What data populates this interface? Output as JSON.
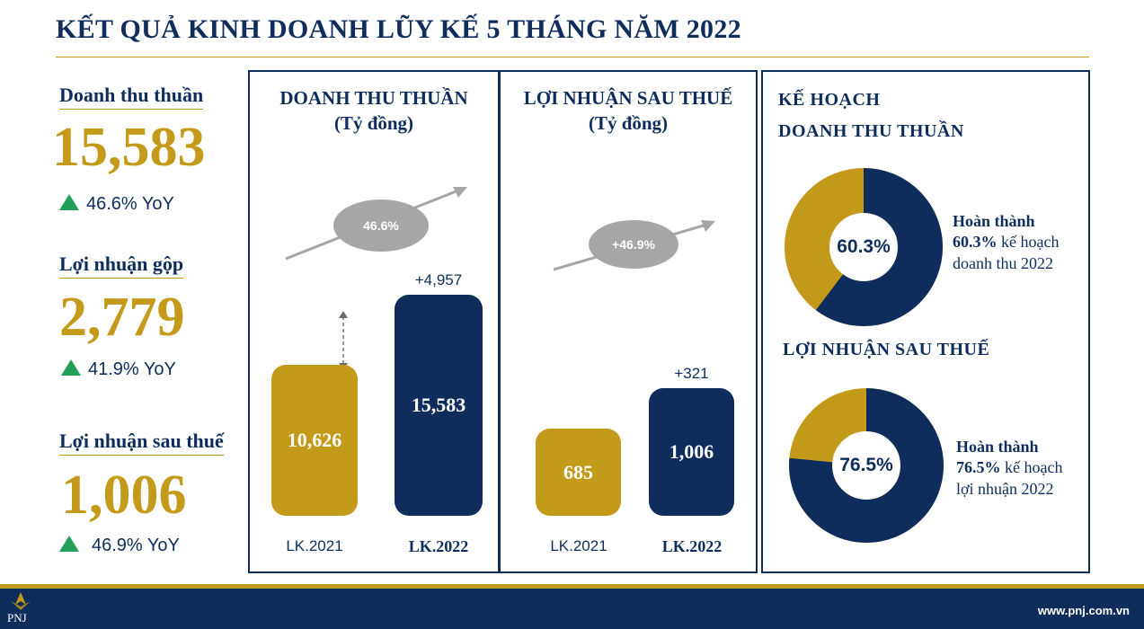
{
  "title": "KẾT QUẢ KINH DOANH LŨY KẾ 5 THÁNG NĂM 2022",
  "kpis": [
    {
      "label": "Doanh thu thuần",
      "value": "15,583",
      "yoy": "46.6% YoY"
    },
    {
      "label": "Lợi nhuận gộp",
      "value": "2,779",
      "yoy": "41.9% YoY"
    },
    {
      "label": "Lợi nhuận sau thuế",
      "value": "1,006",
      "yoy": "46.9% YoY"
    }
  ],
  "colors": {
    "navy": "#0f2d5c",
    "gold": "#c49a1a",
    "green": "#22a05a",
    "grey": "#a6a6a6"
  },
  "chart_data": [
    {
      "type": "bar",
      "title": "DOANH THU THUẦN",
      "unit": "(Tỷ đồng)",
      "categories": [
        "LK.2021",
        "LK.2022"
      ],
      "values": [
        10626,
        15583
      ],
      "value_labels": [
        "10,626",
        "15,583"
      ],
      "delta_label": "+4,957",
      "growth_label": "46.6%",
      "ylim": [
        0,
        19000
      ]
    },
    {
      "type": "bar",
      "title": "LỢI NHUẬN SAU THUẾ",
      "unit": "(Tỷ đồng)",
      "categories": [
        "LK.2021",
        "LK.2022"
      ],
      "values": [
        685,
        1006
      ],
      "value_labels": [
        "685",
        "1,006"
      ],
      "delta_label": "+321",
      "growth_label": "+46.9%",
      "ylim": [
        0,
        1950
      ]
    },
    {
      "type": "pie",
      "title_line1": "KẾ HOẠCH",
      "title_line2": "DOANH THU THUẦN",
      "completed_pct": 60.3,
      "center_label": "60.3%",
      "note_line1": "Hoàn thành",
      "note_pct": "60.3%",
      "note_suffix": " kế hoạch",
      "note_line3": "doanh thu 2022"
    },
    {
      "type": "pie",
      "title": "LỢI NHUẬN SAU THUẾ",
      "completed_pct": 76.5,
      "center_label": "76.5%",
      "note_line1": "Hoàn thành",
      "note_pct": "76.5%",
      "note_suffix": " kế hoạch",
      "note_line3": "lợi nhuận 2022"
    }
  ],
  "footer": {
    "url": "www.pnj.com.vn",
    "logo_text": "PNJ"
  }
}
